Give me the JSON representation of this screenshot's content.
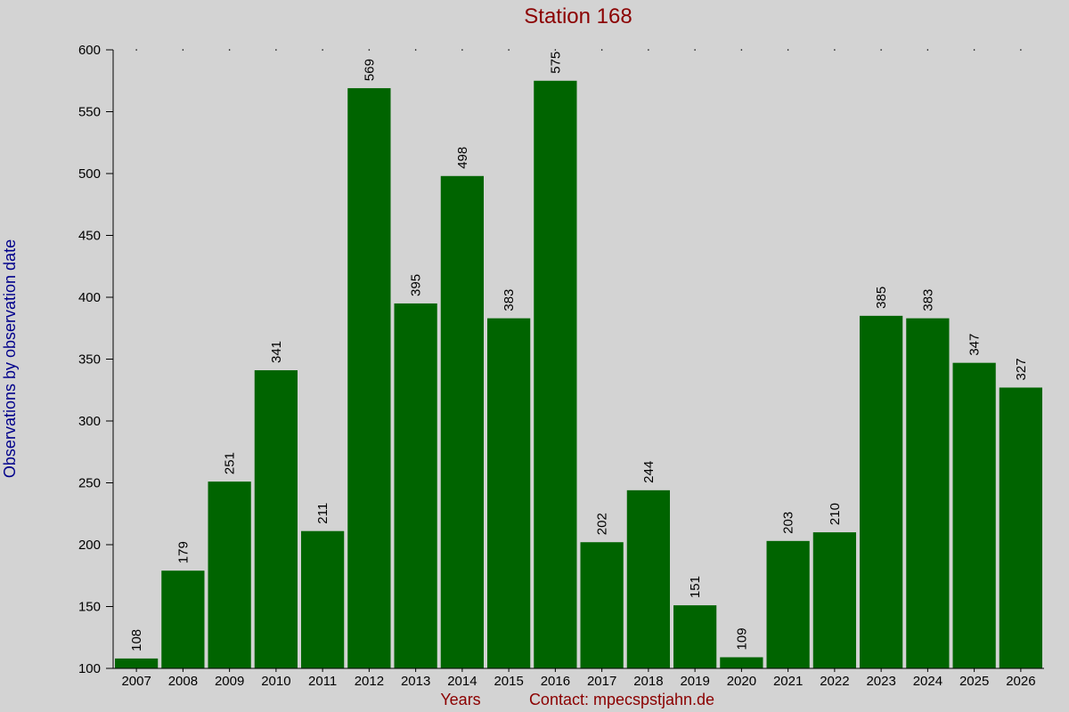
{
  "chart_data": {
    "type": "bar",
    "title": "Station 168",
    "xlabel": "Years",
    "ylabel": "Observations by observation date",
    "contact": "Contact: mpecspstjahn.de",
    "categories": [
      "2007",
      "2008",
      "2009",
      "2010",
      "2011",
      "2012",
      "2013",
      "2014",
      "2015",
      "2016",
      "2017",
      "2018",
      "2019",
      "2020",
      "2021",
      "2022",
      "2023",
      "2024",
      "2025",
      "2026"
    ],
    "values": [
      108,
      179,
      251,
      341,
      211,
      569,
      395,
      498,
      383,
      575,
      202,
      244,
      151,
      109,
      203,
      210,
      385,
      383,
      347,
      327
    ],
    "ylim": [
      100,
      600
    ],
    "yticks": [
      100,
      150,
      200,
      250,
      300,
      350,
      400,
      450,
      500,
      550,
      600
    ],
    "bar_color": "#006400",
    "background_color": "#d3d3d3",
    "title_color": "#8b0000",
    "ylabel_color": "#00008b",
    "xlabel_color": "#8b0000",
    "grid": "dotted-top"
  }
}
